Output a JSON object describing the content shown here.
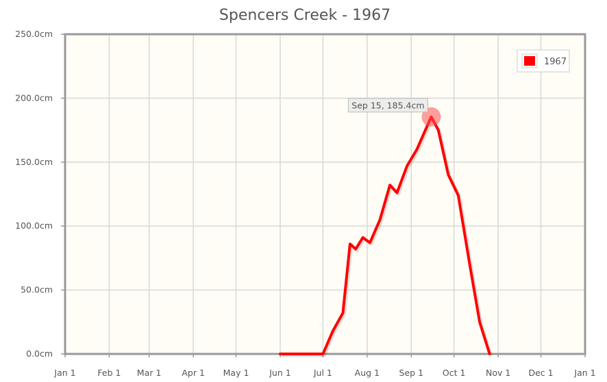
{
  "chart_data": {
    "type": "line",
    "title": "Spencers Creek - 1967",
    "xlabel": "",
    "ylabel": "",
    "y_unit": "cm",
    "ylim": [
      0,
      250
    ],
    "y_ticks": [
      0,
      50,
      100,
      150,
      200,
      250
    ],
    "y_tick_labels": [
      "0.0cm",
      "50.0cm",
      "100.0cm",
      "150.0cm",
      "200.0cm",
      "250.0cm"
    ],
    "x_ticks": [
      "Jan 1",
      "Feb 1",
      "Mar 1",
      "Apr 1",
      "May 1",
      "Jun 1",
      "Jul 1",
      "Aug 1",
      "Sep 1",
      "Oct 1",
      "Nov 1",
      "Dec 1",
      "Jan 1"
    ],
    "grid": true,
    "legend_position": "top-right",
    "series": [
      {
        "name": "1967",
        "color": "#ff0000",
        "points": [
          [
            "Jun 1",
            0
          ],
          [
            "Jul 1",
            0
          ],
          [
            "Jul 8",
            18
          ],
          [
            "Jul 15",
            32
          ],
          [
            "Jul 20",
            86
          ],
          [
            "Jul 24",
            82
          ],
          [
            "Jul 29",
            91
          ],
          [
            "Aug 3",
            87
          ],
          [
            "Aug 10",
            105
          ],
          [
            "Aug 17",
            132
          ],
          [
            "Aug 22",
            126
          ],
          [
            "Aug 29",
            147
          ],
          [
            "Sep 5",
            160
          ],
          [
            "Sep 15",
            185.4
          ],
          [
            "Sep 20",
            175
          ],
          [
            "Sep 27",
            140
          ],
          [
            "Oct 4",
            124
          ],
          [
            "Oct 12",
            70
          ],
          [
            "Oct 19",
            25
          ],
          [
            "Oct 26",
            0
          ]
        ]
      }
    ],
    "tooltip": {
      "text": "Sep 15, 185.4cm",
      "date": "Sep 15",
      "value": 185.4
    }
  },
  "colors": {
    "background": "#fffdf6",
    "grid": "#d8d8d8",
    "frame": "#999999",
    "series": "#ff0000"
  }
}
